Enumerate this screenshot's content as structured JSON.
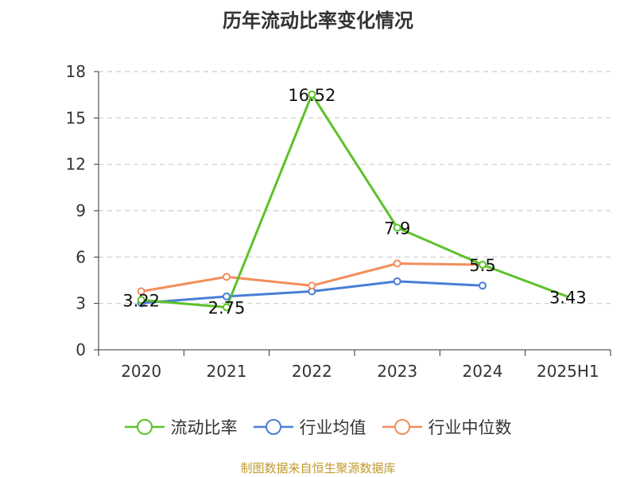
{
  "title": "历年流动比率变化情况",
  "source": "制图数据来自恒生聚源数据库",
  "chart_data": {
    "type": "line",
    "categories": [
      "2020",
      "2021",
      "2022",
      "2023",
      "2024",
      "2025H1"
    ],
    "ylim": [
      0,
      18
    ],
    "yticks": [
      0,
      3,
      6,
      9,
      12,
      15,
      18
    ],
    "grid": true,
    "legend_position": "bottom",
    "series": [
      {
        "name": "流动比率",
        "color": "#5cc22a",
        "values": [
          3.22,
          2.75,
          16.52,
          7.9,
          5.5,
          3.43
        ],
        "labels": [
          "3.22",
          "2.75",
          "16.52",
          "7.9",
          "5.5",
          "3.43"
        ]
      },
      {
        "name": "行业均值",
        "color": "#4a7fd6",
        "values": [
          3.02,
          3.45,
          3.78,
          4.43,
          4.15,
          null
        ]
      },
      {
        "name": "行业中位数",
        "color": "#f28e5b",
        "values": [
          3.78,
          4.72,
          4.15,
          5.58,
          5.5,
          null
        ]
      }
    ]
  }
}
